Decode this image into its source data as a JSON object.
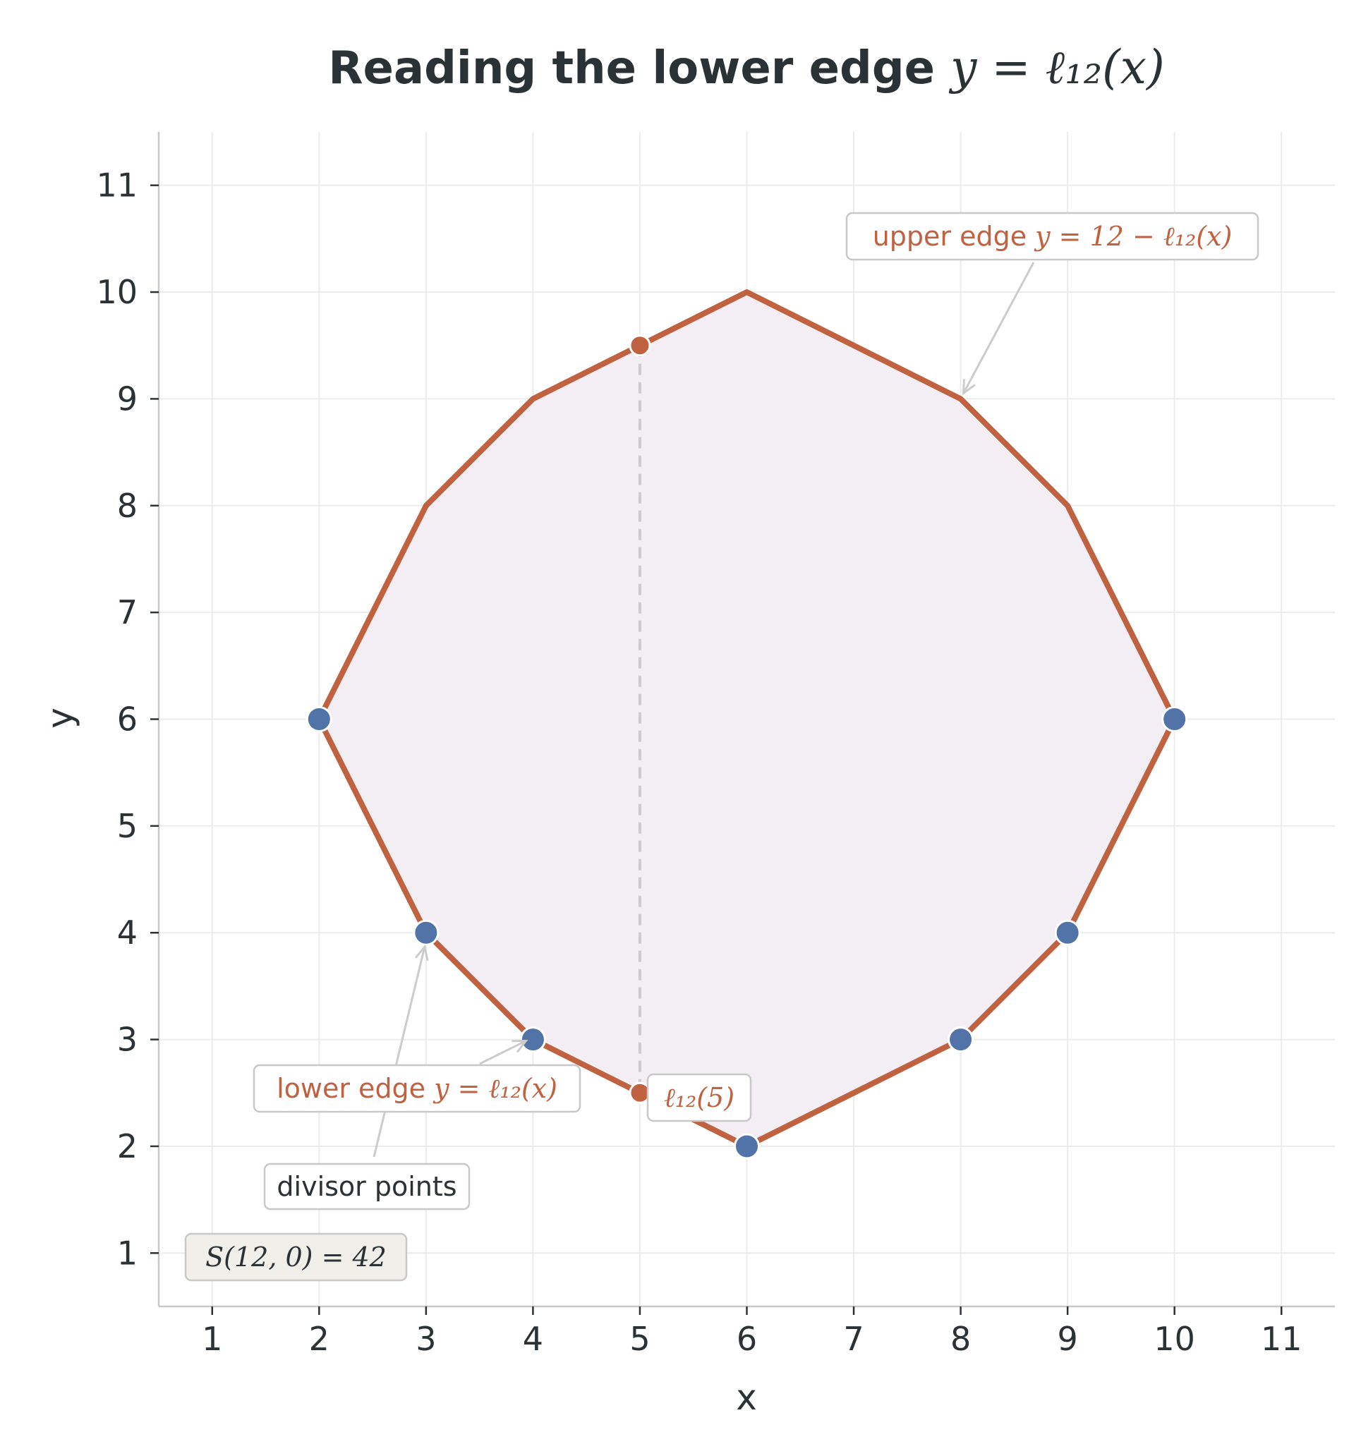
{
  "chart_data": {
    "type": "line",
    "title_text": "Reading the lower edge",
    "title_math": "y = ℓ₁₂(x)",
    "xlabel": "x",
    "ylabel": "y",
    "xlim": [
      0.5,
      11.5
    ],
    "ylim": [
      0.5,
      11.5
    ],
    "xticks": [
      1,
      2,
      3,
      4,
      5,
      6,
      7,
      8,
      9,
      10,
      11
    ],
    "yticks": [
      1,
      2,
      3,
      4,
      5,
      6,
      7,
      8,
      9,
      10,
      11
    ],
    "grid": true,
    "polygon": {
      "x": [
        2,
        3,
        4,
        6,
        8,
        9,
        10,
        9,
        8,
        6,
        4,
        3,
        2
      ],
      "y": [
        6,
        4,
        3,
        2,
        3,
        4,
        6,
        8,
        9,
        10,
        9,
        8,
        6
      ]
    },
    "divisor_points": {
      "x": [
        2,
        3,
        4,
        6,
        8,
        9,
        10
      ],
      "y": [
        6,
        4,
        3,
        2,
        3,
        4,
        6
      ]
    },
    "reading": {
      "x": 5,
      "lower_y": 2.5,
      "upper_y": 9.5
    },
    "annotations": {
      "upper_edge": {
        "text": "upper edge",
        "math": "y = 12 − ℓ₁₂(x)",
        "points_to": [
          8,
          9
        ]
      },
      "lower_edge": {
        "text": "lower edge",
        "math": "y = ℓ₁₂(x)",
        "points_to": [
          4,
          3
        ]
      },
      "reading_label": {
        "math": "ℓ₁₂(5)"
      },
      "divisor_points": {
        "text": "divisor points",
        "points_to": [
          3,
          4
        ]
      },
      "score": {
        "math": "S(12, 0) = 42"
      }
    },
    "colors": {
      "edge": "#c0613f",
      "fill": "#f3eef4",
      "divisor": "#5273a8",
      "grid": "#ebebeb",
      "axis": "#c8c8c8",
      "text": "#2b3236",
      "dashed": "#cfcad0"
    }
  }
}
